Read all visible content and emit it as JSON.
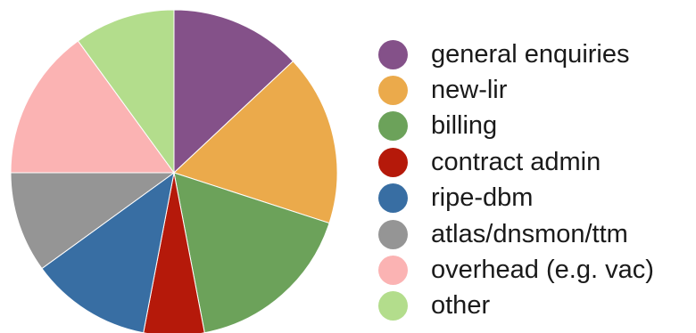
{
  "chart_data": {
    "type": "pie",
    "title": "",
    "legend_position": "right",
    "slices": [
      {
        "label": "general enquiries",
        "value": 13,
        "color": "#845189"
      },
      {
        "label": "new-lir",
        "value": 17,
        "color": "#EBAA4B"
      },
      {
        "label": "billing",
        "value": 17,
        "color": "#6CA25A"
      },
      {
        "label": "contract admin",
        "value": 6,
        "color": "#B5190A"
      },
      {
        "label": "ripe-dbm",
        "value": 12,
        "color": "#386EA3"
      },
      {
        "label": "atlas/dnsmon/ttm",
        "value": 10,
        "color": "#959595"
      },
      {
        "label": "overhead (e.g. vac)",
        "value": 15,
        "color": "#FBB3B3"
      },
      {
        "label": "other",
        "value": 10,
        "color": "#B3DD8C"
      }
    ]
  }
}
